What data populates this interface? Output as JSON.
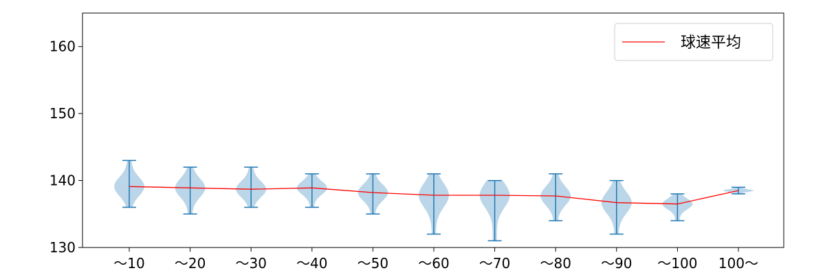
{
  "chart_data": {
    "type": "violin",
    "title": "",
    "xlabel": "",
    "ylabel": "",
    "ylim": [
      130,
      165
    ],
    "yticks": [
      130,
      140,
      150,
      160
    ],
    "categories": [
      "～10",
      "～20",
      "～30",
      "～40",
      "～50",
      "～60",
      "～70",
      "～80",
      "～90",
      "～100",
      "100～"
    ],
    "violins": [
      {
        "min": 136,
        "max": 143,
        "mean": 139.1
      },
      {
        "min": 135,
        "max": 142,
        "mean": 138.9
      },
      {
        "min": 136,
        "max": 142,
        "mean": 138.7
      },
      {
        "min": 136,
        "max": 141,
        "mean": 138.9
      },
      {
        "min": 135,
        "max": 141,
        "mean": 138.2
      },
      {
        "min": 132,
        "max": 141,
        "mean": 137.8
      },
      {
        "min": 131,
        "max": 140,
        "mean": 137.8
      },
      {
        "min": 134,
        "max": 141,
        "mean": 137.7
      },
      {
        "min": 132,
        "max": 140,
        "mean": 136.7
      },
      {
        "min": 134,
        "max": 138,
        "mean": 136.5
      },
      {
        "min": 138,
        "max": 139,
        "mean": 138.5
      }
    ],
    "series": [
      {
        "name": "球速平均",
        "color": "#ff0000",
        "values": [
          139.1,
          138.9,
          138.7,
          138.9,
          138.2,
          137.8,
          137.8,
          137.7,
          136.7,
          136.5,
          138.5
        ]
      }
    ],
    "legend": {
      "position": "top-right",
      "label": "球速平均"
    },
    "colors": {
      "violin_fill": "#1f77b4",
      "violin_line": "#1f77b4",
      "mean_line": "#ff0000",
      "axis": "#000000"
    },
    "grid": false
  }
}
